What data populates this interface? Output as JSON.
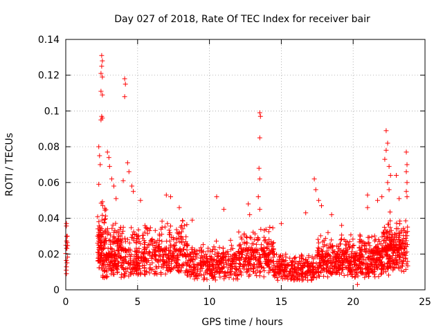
{
  "chart_data": {
    "type": "scatter",
    "title": "Day 027 of 2018, Rate Of TEC Index for receiver bair",
    "xlabel": "GPS time / hours",
    "ylabel": "ROTI / TECUs",
    "xlim": [
      0,
      25
    ],
    "ylim": [
      0,
      0.14
    ],
    "xticks": [
      0,
      5,
      10,
      15,
      20,
      25
    ],
    "xtick_labels": [
      "0",
      "5",
      "10",
      "15",
      "20",
      "25"
    ],
    "yticks": [
      0,
      0.02,
      0.04,
      0.06,
      0.08,
      0.1,
      0.12,
      0.14
    ],
    "ytick_labels": [
      "0",
      "0.02",
      "0.04",
      "0.06",
      "0.08",
      "0.1",
      "0.12",
      "0.14"
    ],
    "grid": true,
    "marker": "plus",
    "color": "#ff0000",
    "bands": [
      {
        "x": [
          0.0,
          0.15
        ],
        "base": 0.02,
        "spread": 0.015,
        "n": 14
      },
      {
        "x": [
          2.2,
          2.8
        ],
        "base": 0.015,
        "spread": 0.03,
        "n": 120
      },
      {
        "x": [
          2.8,
          5.0
        ],
        "base": 0.015,
        "spread": 0.02,
        "n": 260
      },
      {
        "x": [
          5.0,
          8.5
        ],
        "base": 0.016,
        "spread": 0.018,
        "n": 340
      },
      {
        "x": [
          8.5,
          12.0
        ],
        "base": 0.012,
        "spread": 0.012,
        "n": 300
      },
      {
        "x": [
          12.0,
          14.5
        ],
        "base": 0.016,
        "spread": 0.015,
        "n": 260
      },
      {
        "x": [
          14.5,
          17.5
        ],
        "base": 0.011,
        "spread": 0.006,
        "n": 260
      },
      {
        "x": [
          17.5,
          20.0
        ],
        "base": 0.015,
        "spread": 0.012,
        "n": 280
      },
      {
        "x": [
          20.0,
          22.0
        ],
        "base": 0.015,
        "spread": 0.012,
        "n": 240
      },
      {
        "x": [
          22.0,
          23.8
        ],
        "base": 0.018,
        "spread": 0.02,
        "n": 260
      }
    ],
    "outliers": [
      {
        "x": 0.05,
        "y": 0.037
      },
      {
        "x": 0.1,
        "y": 0.03
      },
      {
        "x": 0.05,
        "y": 0.009
      },
      {
        "x": 2.5,
        "y": 0.131
      },
      {
        "x": 2.55,
        "y": 0.128
      },
      {
        "x": 2.5,
        "y": 0.125
      },
      {
        "x": 2.45,
        "y": 0.121
      },
      {
        "x": 2.55,
        "y": 0.119
      },
      {
        "x": 2.45,
        "y": 0.111
      },
      {
        "x": 2.55,
        "y": 0.109
      },
      {
        "x": 2.5,
        "y": 0.097
      },
      {
        "x": 2.45,
        "y": 0.095
      },
      {
        "x": 2.55,
        "y": 0.096
      },
      {
        "x": 2.3,
        "y": 0.08
      },
      {
        "x": 2.35,
        "y": 0.075
      },
      {
        "x": 2.4,
        "y": 0.07
      },
      {
        "x": 2.3,
        "y": 0.059
      },
      {
        "x": 2.9,
        "y": 0.077
      },
      {
        "x": 3.0,
        "y": 0.074
      },
      {
        "x": 3.05,
        "y": 0.069
      },
      {
        "x": 3.2,
        "y": 0.062
      },
      {
        "x": 3.35,
        "y": 0.058
      },
      {
        "x": 3.5,
        "y": 0.051
      },
      {
        "x": 4.1,
        "y": 0.118
      },
      {
        "x": 4.15,
        "y": 0.115
      },
      {
        "x": 4.1,
        "y": 0.108
      },
      {
        "x": 4.0,
        "y": 0.061
      },
      {
        "x": 4.3,
        "y": 0.071
      },
      {
        "x": 4.4,
        "y": 0.066
      },
      {
        "x": 4.6,
        "y": 0.058
      },
      {
        "x": 4.7,
        "y": 0.055
      },
      {
        "x": 5.2,
        "y": 0.05
      },
      {
        "x": 7.0,
        "y": 0.053
      },
      {
        "x": 7.3,
        "y": 0.052
      },
      {
        "x": 7.9,
        "y": 0.046
      },
      {
        "x": 8.8,
        "y": 0.039
      },
      {
        "x": 10.5,
        "y": 0.052
      },
      {
        "x": 11.0,
        "y": 0.045
      },
      {
        "x": 12.7,
        "y": 0.048
      },
      {
        "x": 12.8,
        "y": 0.042
      },
      {
        "x": 13.5,
        "y": 0.099
      },
      {
        "x": 13.55,
        "y": 0.097
      },
      {
        "x": 13.5,
        "y": 0.085
      },
      {
        "x": 13.45,
        "y": 0.068
      },
      {
        "x": 13.5,
        "y": 0.062
      },
      {
        "x": 13.4,
        "y": 0.052
      },
      {
        "x": 13.5,
        "y": 0.045
      },
      {
        "x": 14.2,
        "y": 0.035
      },
      {
        "x": 15.0,
        "y": 0.037
      },
      {
        "x": 16.7,
        "y": 0.043
      },
      {
        "x": 17.3,
        "y": 0.062
      },
      {
        "x": 17.4,
        "y": 0.056
      },
      {
        "x": 17.6,
        "y": 0.05
      },
      {
        "x": 17.8,
        "y": 0.047
      },
      {
        "x": 18.5,
        "y": 0.042
      },
      {
        "x": 19.2,
        "y": 0.036
      },
      {
        "x": 20.5,
        "y": 0.03
      },
      {
        "x": 20.3,
        "y": 0.003
      },
      {
        "x": 21.0,
        "y": 0.053
      },
      {
        "x": 21.0,
        "y": 0.046
      },
      {
        "x": 21.7,
        "y": 0.05
      },
      {
        "x": 22.3,
        "y": 0.089
      },
      {
        "x": 22.4,
        "y": 0.082
      },
      {
        "x": 22.3,
        "y": 0.078
      },
      {
        "x": 22.2,
        "y": 0.073
      },
      {
        "x": 22.5,
        "y": 0.069
      },
      {
        "x": 22.6,
        "y": 0.064
      },
      {
        "x": 22.4,
        "y": 0.06
      },
      {
        "x": 22.5,
        "y": 0.056
      },
      {
        "x": 22.0,
        "y": 0.052
      },
      {
        "x": 23.0,
        "y": 0.064
      },
      {
        "x": 23.2,
        "y": 0.051
      },
      {
        "x": 23.7,
        "y": 0.077
      },
      {
        "x": 23.75,
        "y": 0.07
      },
      {
        "x": 23.7,
        "y": 0.066
      },
      {
        "x": 23.75,
        "y": 0.06
      },
      {
        "x": 23.7,
        "y": 0.055
      },
      {
        "x": 23.75,
        "y": 0.052
      }
    ]
  }
}
